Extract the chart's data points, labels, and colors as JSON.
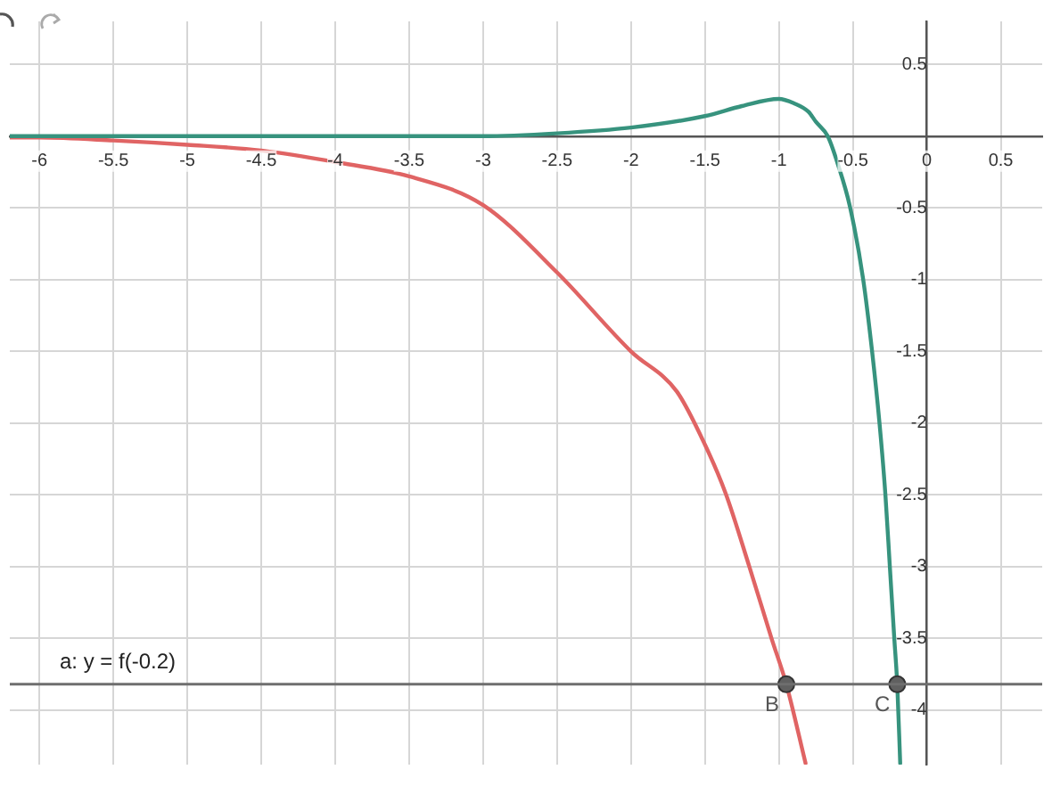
{
  "chart_data": {
    "type": "line",
    "xlim": [
      -6.2,
      0.78
    ],
    "ylim": [
      -4.38,
      0.8
    ],
    "xticks": [
      -6,
      -5.5,
      -5,
      -4.5,
      -4,
      -3.5,
      -3,
      -2.5,
      -2,
      -1.5,
      -1,
      -0.5,
      0,
      0.5
    ],
    "yticks": [
      -4,
      -3.5,
      -3,
      -2.5,
      -2,
      -1.5,
      -1,
      -0.5,
      {
        "value": 0,
        "label": null
      },
      0.5
    ],
    "grid": true,
    "legend": false,
    "series": [
      {
        "color": "#e06464",
        "marker": "none",
        "x": [
          -6.2,
          -6,
          -5.5,
          -5,
          -4.5,
          -4,
          -3.5,
          -3,
          -2.5,
          -2,
          -1.69,
          -1.5,
          -1.36,
          -1.2,
          -1.05,
          -0.95,
          -0.82
        ],
        "values": [
          -0.01,
          -0.01,
          -0.03,
          -0.06,
          -0.1,
          -0.18,
          -0.28,
          -0.48,
          -0.95,
          -1.5,
          -1.78,
          -2.15,
          -2.49,
          -3,
          -3.5,
          -3.82,
          -4.37
        ]
      },
      {
        "color": "#37937e",
        "marker": "none",
        "x": [
          -6.2,
          -3,
          -2.5,
          -2,
          -1.5,
          -1.25,
          -1,
          -0.9,
          -0.8,
          -0.75,
          -0.67,
          -0.6,
          -0.52,
          -0.43,
          -0.37,
          -0.32,
          -0.28,
          -0.25,
          -0.22,
          -0.2,
          -0.18
        ],
        "values": [
          0,
          0,
          0.02,
          0.06,
          0.14,
          0.21,
          0.26,
          0.23,
          0.17,
          0.1,
          0,
          -0.2,
          -0.49,
          -1,
          -1.5,
          -2,
          -2.5,
          -3,
          -3.5,
          -3.82,
          -4.37
        ]
      },
      {
        "type": "scatter",
        "color": "#606060",
        "marker": "circle",
        "x": [
          -0.95,
          -0.2
        ],
        "values": [
          -3.82,
          -3.82
        ]
      }
    ],
    "ref_lines": [
      {
        "axis": "y",
        "value": -3.82,
        "label": "a: y = f(-0.2)",
        "color": "#6e6e6e"
      }
    ],
    "annotations": [
      {
        "text": "B",
        "x": -0.95,
        "y": -3.82
      },
      {
        "text": "C",
        "x": -0.2,
        "y": -3.82
      }
    ]
  }
}
